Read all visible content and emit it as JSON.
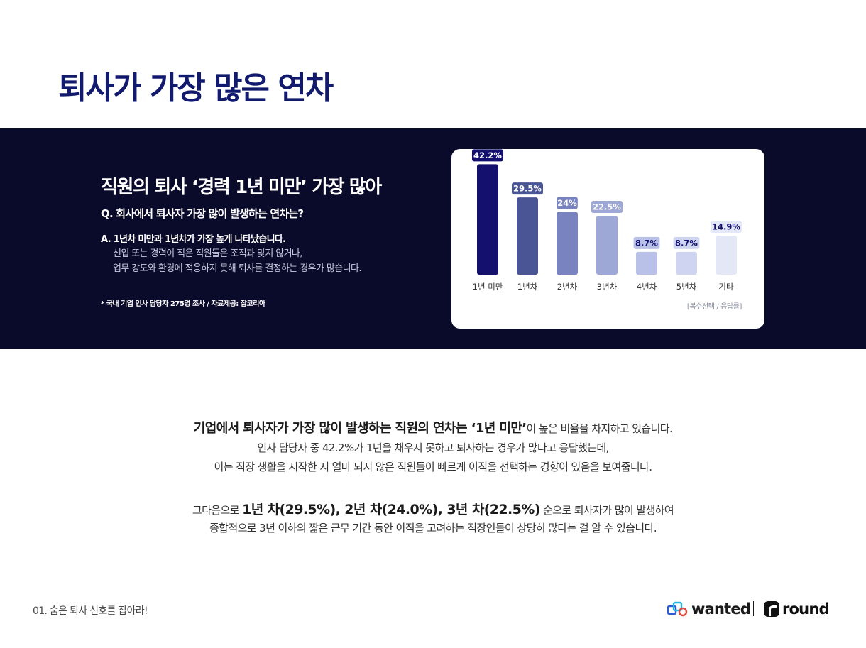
{
  "title": "퇴사가 가장 많은 연차",
  "band": {
    "headline": "직원의 퇴사 ‘경력 1년 미만’ 가장 많아",
    "question": "Q. 회사에서 퇴사자 가장 많이 발생하는 연차는?",
    "answer": "A. 1년차 미만과 1년차가 가장 높게 나타났습니다.",
    "answer_lines": [
      "신입 또는 경력이 적은 직원들은 조직과 맞지 않거나,",
      "업무 강도와 환경에 적응하지 못해 퇴사를 결정하는 경우가 많습니다."
    ],
    "footnote": "* 국내 기업 인사 담당자 275명 조사 / 자료제공: 잡코리아",
    "background_color": "#0a0a2a"
  },
  "chart_data": {
    "type": "bar",
    "categories": [
      "1년 미만",
      "1년차",
      "2년차",
      "3년차",
      "4년차",
      "5년차",
      "기타"
    ],
    "values": [
      42.2,
      29.5,
      24.0,
      22.5,
      8.7,
      8.7,
      14.9
    ],
    "value_labels": [
      "42.2%",
      "29.5%",
      "24%",
      "22.5%",
      "8.7%",
      "8.7%",
      "14.9%"
    ],
    "colors": [
      "#14116e",
      "#4a5596",
      "#7883c0",
      "#9ea8d7",
      "#b9c1e8",
      "#cfd5f0",
      "#e4e8f6"
    ],
    "label_bg_colors": [
      "#14116e",
      "#4a5596",
      "#7883c0",
      "#9ea8d7",
      "#b9c1e8",
      "#cfd5f0",
      "#e4e8f6"
    ],
    "label_text_colors": [
      "#ffffff",
      "#ffffff",
      "#ffffff",
      "#ffffff",
      "#14116e",
      "#14116e",
      "#14116e"
    ],
    "ylim": [
      0,
      45
    ],
    "note": "[복수선택 / 응답률]"
  },
  "body": {
    "line1_bold": "기업에서 퇴사자가 가장 많이 발생하는 직원의 연차는 ‘1년 미만’",
    "line1_rest": "이 높은 비율을 차지하고 있습니다.",
    "line2": "인사 담당자 중 42.2%가 1년을 채우지 못하고 퇴사하는 경우가 많다고 응답했는데,",
    "line3": "이는 직장 생활을 시작한 지 얼마 되지 않은 직원들이 빠르게 이직을 선택하는 경향이 있음을 보여줍니다.",
    "line4_pre": "그다음으로 ",
    "line4_bold": "1년 차(29.5%), 2년 차(24.0%), 3년 차(22.5%)",
    "line4_post": " 순으로 퇴사자가 많이 발생하여",
    "line5": "종합적으로 3년 이하의 짧은 근무 기간 동안 이직을 고려하는 직장인들이 상당히 많다는 걸 알 수 있습니다."
  },
  "footer": {
    "section_label": "01. 숨은 퇴사 신호를 잡아라!",
    "logo_wanted": "wanted",
    "logo_round": "round"
  },
  "colors": {
    "title": "#121a6e",
    "band": "#0a0a2a"
  }
}
